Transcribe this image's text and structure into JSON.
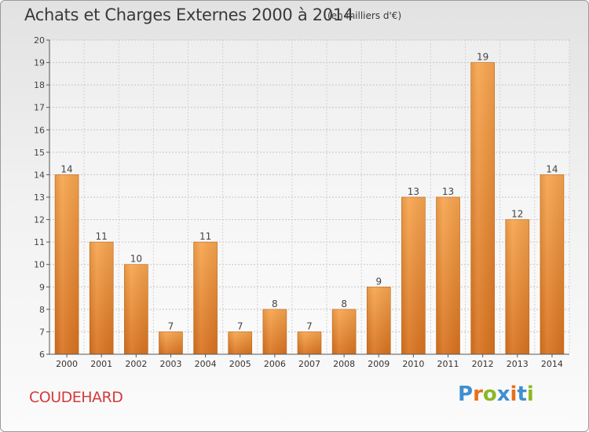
{
  "header": {
    "title": "Achats et Charges Externes 2000 à 2014",
    "unit": "(en milliers d'€)"
  },
  "footer": {
    "place": "COUDEHARD",
    "logo": "Proxiti"
  },
  "colors": {
    "bar_top": "#f7a54e",
    "bar_bottom": "#d8721f",
    "place_text": "#d53a3a",
    "logo": [
      "#3f8fd0",
      "#e86e1e",
      "#8bb824",
      "#3f8fd0",
      "#e86e1e",
      "#3f8fd0",
      "#8bb824"
    ]
  },
  "chart_data": {
    "type": "bar",
    "title": "Achats et Charges Externes 2000 à 2014",
    "subtitle": "(en milliers d'€)",
    "categories": [
      "2000",
      "2001",
      "2002",
      "2003",
      "2004",
      "2005",
      "2006",
      "2007",
      "2008",
      "2009",
      "2010",
      "2011",
      "2012",
      "2013",
      "2014"
    ],
    "values": [
      14,
      11,
      10,
      7,
      11,
      7,
      8,
      7,
      8,
      9,
      13,
      13,
      19,
      12,
      14
    ],
    "ylim": [
      6,
      20
    ],
    "yticks": [
      6,
      7,
      8,
      9,
      10,
      11,
      12,
      13,
      14,
      15,
      16,
      17,
      18,
      19,
      20
    ],
    "grid": true,
    "legend": "none",
    "data_labels": true
  }
}
